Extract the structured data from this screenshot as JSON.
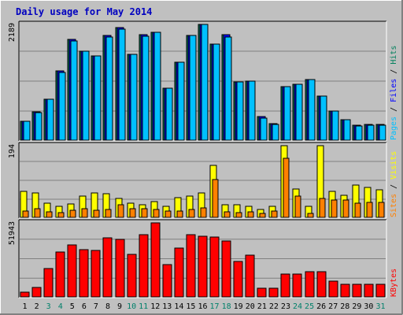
{
  "chart_data": {
    "type": "bar",
    "title": "Daily usage for May 2014",
    "categories": [
      "1",
      "2",
      "3",
      "4",
      "5",
      "6",
      "7",
      "8",
      "9",
      "10",
      "11",
      "12",
      "13",
      "14",
      "15",
      "16",
      "17",
      "18",
      "19",
      "20",
      "21",
      "22",
      "23",
      "24",
      "25",
      "26",
      "27",
      "28",
      "29",
      "30",
      "31"
    ],
    "weekend_days": [
      "3",
      "4",
      "10",
      "11",
      "17",
      "18",
      "24",
      "25",
      "31"
    ],
    "colors": {
      "background": "#c0c0c0",
      "title": "#0000c0",
      "weekday_label": "#000000",
      "weekend_label": "#00806a",
      "hits": "#00805c",
      "files": "#0000ff",
      "pages": "#00c0ff",
      "visits": "#ffff00",
      "sites": "#ff8000",
      "kbytes": "#ff0000",
      "gridline": "#808080"
    },
    "panels": [
      {
        "name": "hits_files_pages",
        "ymax_label": "2189",
        "ymax": 2189,
        "legend": [
          {
            "text": "Pages",
            "color": "#00c0ff"
          },
          {
            "text": " / ",
            "color": "#000000"
          },
          {
            "text": "Files",
            "color": "#0000ff"
          },
          {
            "text": " / ",
            "color": "#000000"
          },
          {
            "text": "Hits",
            "color": "#00805c"
          }
        ],
        "series": [
          {
            "name": "Hits",
            "color": "#00805c",
            "values": [
              369,
              546,
              788,
              1315,
              1913,
              1686,
              1592,
              1979,
              2128,
              1620,
              1993,
              2046,
              995,
              1483,
              1987,
              2189,
              1818,
              1993,
              1107,
              1117,
              464,
              320,
              1024,
              1069,
              1148,
              840,
              563,
              402,
              293,
              312,
              312
            ]
          },
          {
            "name": "Files",
            "color": "#0000ff",
            "values": [
              369,
              546,
              788,
              1315,
              1913,
              1686,
              1592,
              1979,
              2128,
              1620,
              1993,
              2046,
              995,
              1483,
              1987,
              2189,
              1818,
              1993,
              1107,
              1117,
              464,
              320,
              1024,
              1069,
              1148,
              840,
              563,
              402,
              293,
              312,
              312
            ]
          },
          {
            "name": "Pages",
            "color": "#00c0ff",
            "values": [
              369,
              530,
              788,
              1292,
              1880,
              1686,
              1592,
              1946,
              2095,
              1620,
              1960,
              2046,
              995,
              1483,
              1976,
              2189,
              1818,
              1946,
              1107,
              1117,
              436,
              308,
              1024,
              1069,
              1148,
              840,
              563,
              402,
              281,
              300,
              300
            ]
          }
        ]
      },
      {
        "name": "visits_sites",
        "ymax_label": "194",
        "ymax": 194,
        "legend": [
          {
            "text": "Sites",
            "color": "#ff8000"
          },
          {
            "text": " / ",
            "color": "#000000"
          },
          {
            "text": "Visits",
            "color": "#ffff00"
          }
        ],
        "series": [
          {
            "name": "Visits",
            "color": "#ffff00",
            "values": [
              72,
              67,
              40,
              31,
              38,
              58,
              68,
              66,
              53,
              40,
              36,
              45,
              31,
              54,
              60,
              68,
              142,
              36,
              35,
              31,
              24,
              31,
              194,
              78,
              32,
              194,
              71,
              62,
              88,
              82,
              76
            ]
          },
          {
            "name": "Sites",
            "color": "#ff8000",
            "values": [
              20,
              25,
              17,
              15,
              22,
              25,
              21,
              24,
              35,
              25,
              25,
              23,
              19,
              20,
              23,
              28,
              104,
              17,
              15,
              17,
              13,
              18,
              161,
              58,
              12,
              53,
              49,
              48,
              40,
              42,
              42
            ]
          }
        ]
      },
      {
        "name": "kbytes",
        "ymax_label": "51943",
        "ymax": 51943,
        "legend": [
          {
            "text": "KBytes",
            "color": "#ff0000"
          }
        ],
        "series": [
          {
            "name": "KBytes",
            "color": "#ff0000",
            "values": [
              3646,
              7014,
              20475,
              31687,
              36738,
              33371,
              32811,
              41792,
              40670,
              29844,
              43477,
              51943,
              23222,
              34493,
              43477,
              42914,
              42350,
              39543,
              25408,
              29282,
              6471,
              6471,
              16567,
              16567,
              18249,
              18249,
              11519,
              9275,
              9275,
              9275,
              9275
            ]
          }
        ]
      }
    ]
  }
}
